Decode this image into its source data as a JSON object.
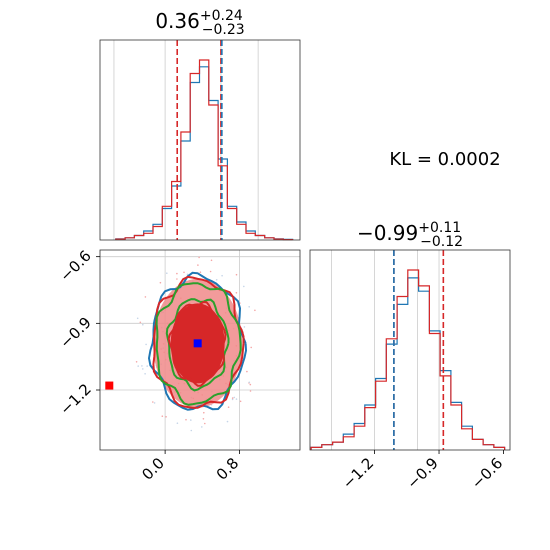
{
  "chart_data": [
    {
      "panel": "top-left",
      "type": "histogram",
      "title": {
        "value": "0.36",
        "sup": "+0.24",
        "sub": "−0.23"
      },
      "x_range": [
        -0.7,
        1.45
      ],
      "median": 0.36,
      "quantiles": [
        0.13,
        0.6
      ],
      "series": [
        {
          "color": "#1f77b4",
          "bin_centers": [
            -0.48,
            -0.38,
            -0.28,
            -0.18,
            -0.08,
            0.02,
            0.12,
            0.22,
            0.32,
            0.42,
            0.52,
            0.62,
            0.72,
            0.82,
            0.92,
            1.02,
            1.12,
            1.22,
            1.32
          ],
          "counts": [
            0.5,
            1,
            2,
            4,
            7,
            14,
            24,
            44,
            70,
            77,
            62,
            36,
            15,
            8,
            4,
            2,
            1,
            0.5,
            0.3
          ]
        },
        {
          "color": "#d62728",
          "bin_centers": [
            -0.48,
            -0.38,
            -0.28,
            -0.18,
            -0.08,
            0.02,
            0.12,
            0.22,
            0.32,
            0.42,
            0.52,
            0.62,
            0.72,
            0.82,
            0.92,
            1.02,
            1.12,
            1.22,
            1.32
          ],
          "counts": [
            0.4,
            1,
            2,
            3,
            6,
            15,
            26,
            48,
            74,
            80,
            60,
            33,
            14,
            7,
            3,
            2,
            1,
            0.4,
            0.2
          ]
        }
      ],
      "vlines": [
        {
          "x": 0.13,
          "color": "#d62728",
          "style": "dashed"
        },
        {
          "x": 0.6,
          "color": "#d62728",
          "style": "dashed"
        },
        {
          "x": 0.61,
          "color": "#1f77b4",
          "style": "dashed"
        }
      ],
      "reference_lines_x": [
        -0.55,
        0.0,
        0.6,
        1.0
      ]
    },
    {
      "panel": "bottom-left",
      "type": "contour",
      "x_range": [
        -0.7,
        1.45
      ],
      "y_range": [
        -1.47,
        -0.57
      ],
      "x_ticks": [
        "0.0",
        "0.8"
      ],
      "x_tick_values": [
        0.0,
        0.8
      ],
      "y_ticks": [
        "−0.6",
        "−0.9",
        "−1.2"
      ],
      "y_tick_values": [
        -0.6,
        -0.9,
        -1.2
      ],
      "center": {
        "x": 0.35,
        "y": -0.99
      },
      "contours": [
        {
          "color": "#1f77b4",
          "rx": 0.5,
          "ry": 0.3
        },
        {
          "color": "#d62728",
          "rx": 0.48,
          "ry": 0.29
        },
        {
          "color": "#2ca02c",
          "rx": 0.45,
          "ry": 0.27
        },
        {
          "color": "#2ca02c",
          "rx": 0.32,
          "ry": 0.2
        },
        {
          "color": "#d62728",
          "rx": 0.29,
          "ry": 0.18
        }
      ],
      "markers": [
        {
          "x": 0.35,
          "y": -0.99,
          "color": "#0000ff",
          "shape": "square"
        },
        {
          "x": -0.6,
          "y": -1.18,
          "color": "#ff0000",
          "shape": "square"
        }
      ],
      "reference_lines_x": [
        0.0,
        0.8
      ],
      "reference_lines_y": [
        -0.6,
        -0.9,
        -1.2
      ]
    },
    {
      "panel": "bottom-right",
      "type": "histogram",
      "title": {
        "value": "−0.99",
        "sup": "+0.11",
        "sub": "−0.12"
      },
      "x_range": [
        -1.5,
        -0.57
      ],
      "x_ticks": [
        "−1.2",
        "−0.9",
        "−0.6"
      ],
      "x_tick_values": [
        -1.2,
        -0.9,
        -0.6
      ],
      "median": -0.99,
      "quantiles": [
        -1.11,
        -0.88
      ],
      "series": [
        {
          "color": "#1f77b4",
          "bin_centers": [
            -1.47,
            -1.42,
            -1.37,
            -1.32,
            -1.27,
            -1.22,
            -1.17,
            -1.12,
            -1.07,
            -1.02,
            -0.97,
            -0.92,
            -0.87,
            -0.82,
            -0.77,
            -0.72,
            -0.67,
            -0.62
          ],
          "counts": [
            1,
            2,
            3,
            6,
            10,
            17,
            27,
            40,
            55,
            65,
            60,
            45,
            30,
            18,
            9,
            4,
            2,
            1
          ]
        },
        {
          "color": "#d62728",
          "bin_centers": [
            -1.47,
            -1.42,
            -1.37,
            -1.32,
            -1.27,
            -1.22,
            -1.17,
            -1.12,
            -1.07,
            -1.02,
            -0.97,
            -0.92,
            -0.87,
            -0.82,
            -0.77,
            -0.72,
            -0.67,
            -0.62
          ],
          "counts": [
            1,
            2,
            3,
            5,
            9,
            16,
            26,
            42,
            58,
            68,
            62,
            44,
            28,
            17,
            8,
            4,
            2,
            1
          ]
        }
      ],
      "vlines": [
        {
          "x": -1.11,
          "color": "#d62728",
          "style": "dashed"
        },
        {
          "x": -1.11,
          "color": "#1f77b4",
          "style": "dashed"
        },
        {
          "x": -0.88,
          "color": "#d62728",
          "style": "dashed"
        }
      ],
      "reference_lines_x": [
        -1.4,
        -1.2,
        -1.0,
        -0.9
      ]
    }
  ],
  "annotation": {
    "kl_label": "KL = 0.0002"
  }
}
